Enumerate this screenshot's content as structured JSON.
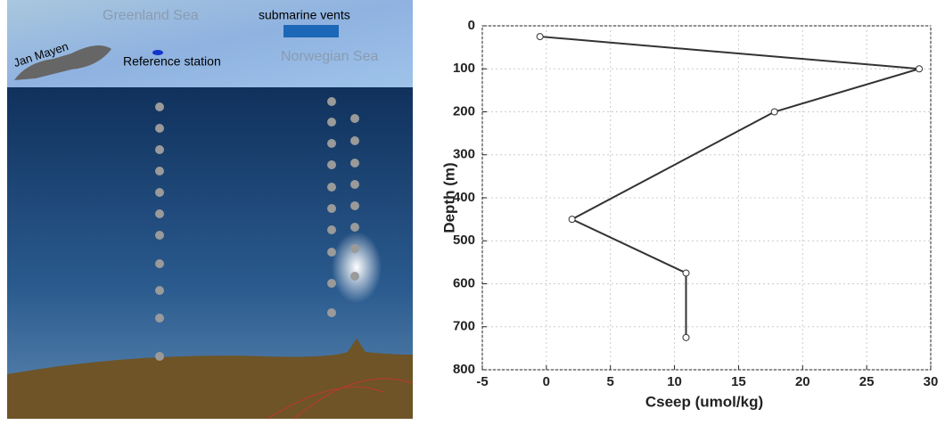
{
  "chart_data": {
    "type": "line",
    "xlabel": "Cseep (umol/kg)",
    "ylabel": "Depth (m)",
    "x": [
      -0.5,
      29.1,
      17.8,
      2.0,
      10.9,
      10.9
    ],
    "values": [
      25,
      100,
      200,
      450,
      575,
      725
    ],
    "color": "#333333",
    "xlim": [
      -5,
      30
    ],
    "xticks": [
      -5,
      0,
      5,
      10,
      15,
      20,
      25,
      30
    ],
    "ylim": [
      0,
      800
    ],
    "yticks": [
      0,
      100,
      200,
      300,
      400,
      500,
      600,
      700,
      800
    ],
    "y_inverted": true,
    "grid": true
  },
  "illustration": {
    "labels": [
      "Greenland Sea",
      "submarine vents",
      "Jan Mayen",
      "Reference station",
      "Norwegian Sea"
    ]
  }
}
